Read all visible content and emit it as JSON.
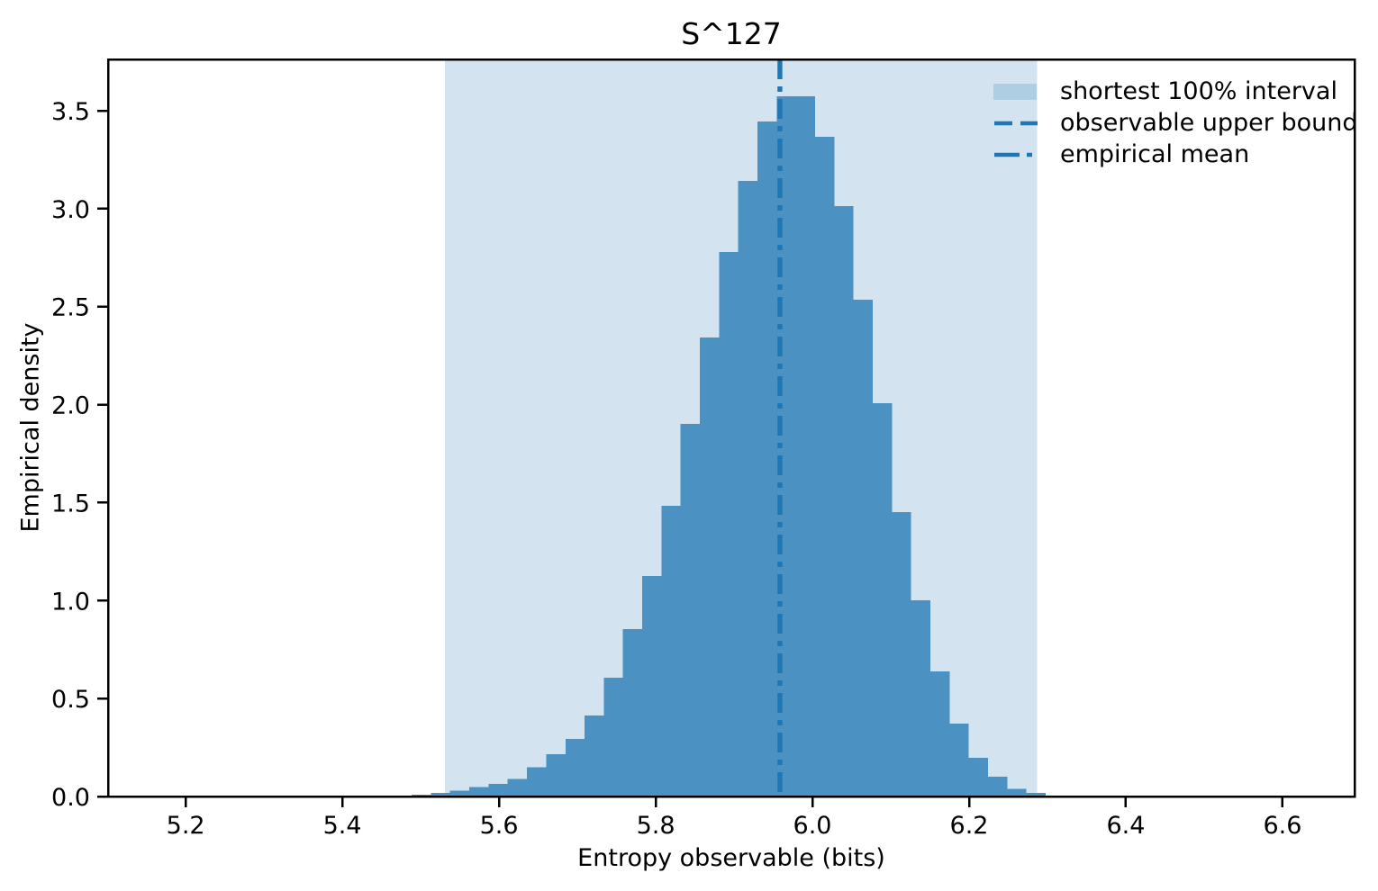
{
  "title": "S^127",
  "xlabel": "Entropy observable (bits)",
  "ylabel": "Empirical density",
  "legend": {
    "position": "upper right",
    "items": [
      {
        "label": "shortest 100% interval",
        "sample": "patch"
      },
      {
        "label": "observable upper bound",
        "sample": "dashed-line"
      },
      {
        "label": "empirical mean",
        "sample": "dashdot-line"
      }
    ]
  },
  "colors": {
    "bar": "#4B92C3",
    "band": "#D3E4F0",
    "line": "#1F77B4",
    "axis": "#000000",
    "background": "#FFFFFF"
  },
  "chart_data": {
    "type": "bar",
    "subtype": "histogram",
    "title": "S^127",
    "xlabel": "Entropy observable (bits)",
    "ylabel": "Empirical density",
    "xlim": [
      5.101,
      6.692
    ],
    "ylim": [
      0,
      3.762
    ],
    "x_ticks": [
      5.2,
      5.4,
      5.6,
      5.8,
      6.0,
      6.2,
      6.4,
      6.6
    ],
    "y_ticks": [
      0.0,
      0.5,
      1.0,
      1.5,
      2.0,
      2.5,
      3.0,
      3.5
    ],
    "grid": false,
    "n_bins": 33,
    "bin_edges": [
      5.4885,
      5.513,
      5.5375,
      5.5621,
      5.5866,
      5.6111,
      5.6356,
      5.6601,
      5.6847,
      5.7092,
      5.7337,
      5.7582,
      5.7827,
      5.8073,
      5.8318,
      5.8563,
      5.8808,
      5.9053,
      5.9299,
      5.9544,
      5.9789,
      6.0034,
      6.0279,
      6.0525,
      6.077,
      6.1015,
      6.126,
      6.1505,
      6.1751,
      6.1996,
      6.2241,
      6.2486,
      6.2731,
      6.2977
    ],
    "densities": [
      0.01,
      0.018,
      0.03,
      0.048,
      0.065,
      0.09,
      0.15,
      0.215,
      0.294,
      0.413,
      0.606,
      0.854,
      1.125,
      1.484,
      1.902,
      2.343,
      2.78,
      3.142,
      3.445,
      3.573,
      3.573,
      3.367,
      3.013,
      2.535,
      2.007,
      1.451,
      1.001,
      0.638,
      0.372,
      0.198,
      0.1,
      0.04,
      0.018
    ],
    "shaded_interval": [
      5.531,
      6.287
    ],
    "shaded_interval_label": "shortest 100% interval",
    "observable_upper_bound": 5.958,
    "empirical_mean": 5.959,
    "legend_position": "upper right"
  }
}
